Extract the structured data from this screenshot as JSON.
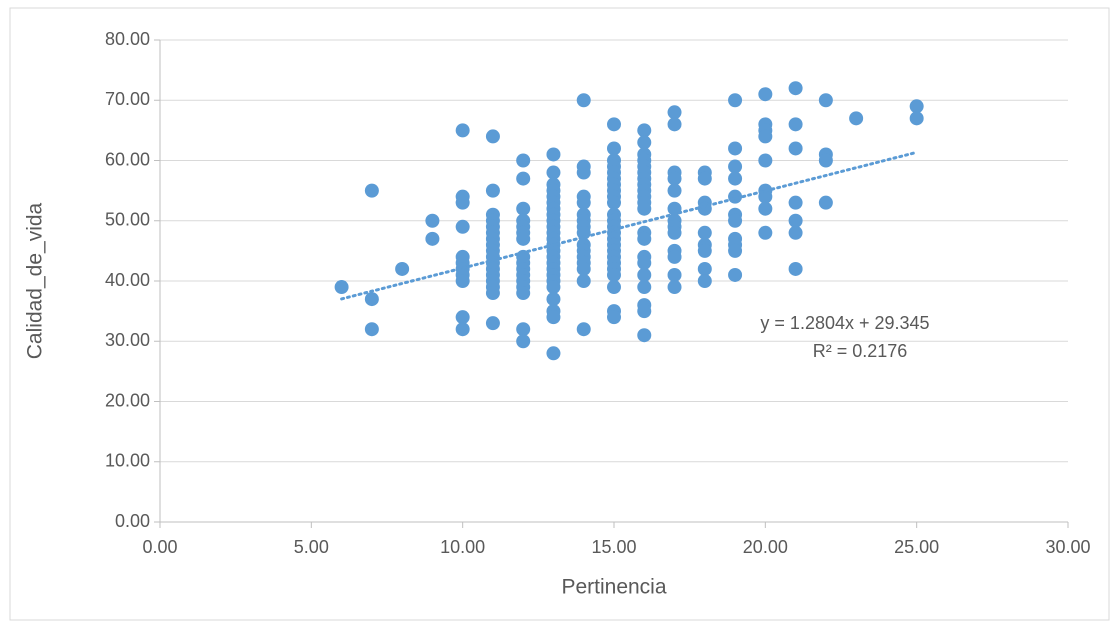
{
  "chart_data": {
    "type": "scatter",
    "x_label": "Pertinencia",
    "y_label": "Calidad_de_vida",
    "color": "#5b9bd5",
    "x": [
      6,
      7,
      7,
      7,
      8,
      9,
      9,
      10,
      10,
      10,
      10,
      10,
      10,
      10,
      10,
      10,
      10,
      10,
      11,
      11,
      11,
      11,
      11,
      11,
      11,
      11,
      11,
      11,
      11,
      11,
      11,
      11,
      11,
      11,
      11,
      12,
      12,
      12,
      12,
      12,
      12,
      12,
      12,
      12,
      12,
      12,
      12,
      12,
      12,
      12,
      12,
      13,
      13,
      13,
      13,
      13,
      13,
      13,
      13,
      13,
      13,
      13,
      13,
      13,
      13,
      13,
      13,
      13,
      13,
      13,
      13,
      13,
      13,
      13,
      13,
      14,
      14,
      14,
      14,
      14,
      14,
      14,
      14,
      14,
      14,
      14,
      14,
      14,
      14,
      14,
      14,
      15,
      15,
      15,
      15,
      15,
      15,
      15,
      15,
      15,
      15,
      15,
      15,
      15,
      15,
      15,
      15,
      15,
      15,
      15,
      15,
      15,
      15,
      15,
      15,
      16,
      16,
      16,
      16,
      16,
      16,
      16,
      16,
      16,
      16,
      16,
      16,
      16,
      16,
      16,
      16,
      16,
      16,
      16,
      16,
      16,
      17,
      17,
      17,
      17,
      17,
      17,
      17,
      17,
      17,
      17,
      17,
      17,
      17,
      18,
      18,
      18,
      18,
      18,
      18,
      18,
      18,
      18,
      19,
      19,
      19,
      19,
      19,
      19,
      19,
      19,
      19,
      19,
      19,
      20,
      20,
      20,
      20,
      20,
      20,
      20,
      20,
      20,
      21,
      21,
      21,
      21,
      21,
      21,
      21,
      22,
      22,
      22,
      22,
      23,
      25,
      25
    ],
    "values": [
      39,
      55,
      37,
      32,
      42,
      50,
      47,
      65,
      54,
      53,
      49,
      44,
      43,
      42,
      41,
      40,
      34,
      32,
      64,
      55,
      51,
      50,
      49,
      48,
      47,
      46,
      45,
      44,
      43,
      42,
      41,
      40,
      39,
      38,
      33,
      60,
      57,
      52,
      50,
      49,
      48,
      47,
      44,
      43,
      42,
      41,
      40,
      39,
      38,
      32,
      30,
      61,
      58,
      56,
      55,
      54,
      53,
      52,
      51,
      50,
      49,
      48,
      47,
      46,
      45,
      44,
      43,
      42,
      41,
      40,
      39,
      37,
      35,
      34,
      28,
      70,
      59,
      58,
      54,
      53,
      51,
      50,
      49,
      48,
      46,
      45,
      44,
      43,
      42,
      40,
      32,
      66,
      62,
      60,
      59,
      58,
      57,
      56,
      55,
      54,
      53,
      51,
      50,
      49,
      48,
      47,
      46,
      45,
      44,
      43,
      42,
      41,
      39,
      35,
      34,
      65,
      63,
      61,
      60,
      59,
      58,
      57,
      56,
      55,
      54,
      53,
      52,
      48,
      47,
      44,
      43,
      41,
      39,
      36,
      35,
      31,
      68,
      66,
      58,
      57,
      55,
      52,
      50,
      49,
      48,
      45,
      44,
      41,
      39,
      58,
      57,
      53,
      52,
      48,
      46,
      45,
      42,
      40,
      70,
      62,
      59,
      57,
      54,
      51,
      50,
      47,
      46,
      45,
      41,
      71,
      66,
      65,
      64,
      60,
      55,
      54,
      52,
      48,
      72,
      66,
      62,
      53,
      50,
      48,
      42,
      70,
      61,
      60,
      53,
      67,
      69,
      67
    ],
    "xlim": [
      0,
      30
    ],
    "xticks": [
      {
        "value": 0,
        "label": "0.00"
      },
      {
        "value": 5,
        "label": "5.00"
      },
      {
        "value": 10,
        "label": "10.00"
      },
      {
        "value": 15,
        "label": "15.00"
      },
      {
        "value": 20,
        "label": "20.00"
      },
      {
        "value": 25,
        "label": "25.00"
      },
      {
        "value": 30,
        "label": "30.00"
      }
    ],
    "ylim": [
      0,
      80
    ],
    "yticks": [
      {
        "value": 0,
        "label": "0.00"
      },
      {
        "value": 10,
        "label": "10.00"
      },
      {
        "value": 20,
        "label": "20.00"
      },
      {
        "value": 30,
        "label": "30.00"
      },
      {
        "value": 40,
        "label": "40.00"
      },
      {
        "value": 50,
        "label": "50.00"
      },
      {
        "value": 60,
        "label": "60.00"
      },
      {
        "value": 70,
        "label": "70.00"
      },
      {
        "value": 80,
        "label": "80.00"
      }
    ],
    "grid": true,
    "trendline": {
      "slope": 1.2804,
      "intercept": 29.345,
      "equation": "y = 1.2804x + 29.345",
      "r2": "R² = 0.2176"
    }
  }
}
